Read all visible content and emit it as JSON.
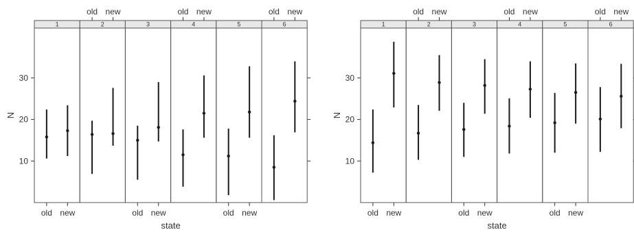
{
  "chart_data": [
    {
      "type": "errorbar",
      "xlabel": "state",
      "ylabel": "N",
      "categories": [
        "old",
        "new"
      ],
      "y_ticks": [
        10,
        20,
        30
      ],
      "ylim": [
        0,
        42
      ],
      "panels": [
        {
          "label": "1",
          "points": [
            {
              "x": "old",
              "y": 15.8,
              "low": 10.6,
              "high": 22.4
            },
            {
              "x": "new",
              "y": 17.3,
              "low": 11.2,
              "high": 23.4
            }
          ]
        },
        {
          "label": "2",
          "points": [
            {
              "x": "old",
              "y": 16.4,
              "low": 6.9,
              "high": 19.7
            },
            {
              "x": "new",
              "y": 16.6,
              "low": 13.7,
              "high": 27.6
            }
          ]
        },
        {
          "label": "3",
          "points": [
            {
              "x": "old",
              "y": 15.0,
              "low": 5.5,
              "high": 18.5
            },
            {
              "x": "new",
              "y": 18.1,
              "low": 14.7,
              "high": 29.0
            }
          ]
        },
        {
          "label": "4",
          "points": [
            {
              "x": "old",
              "y": 11.5,
              "low": 3.8,
              "high": 17.6
            },
            {
              "x": "new",
              "y": 21.5,
              "low": 15.6,
              "high": 30.6
            }
          ]
        },
        {
          "label": "5",
          "points": [
            {
              "x": "old",
              "y": 11.2,
              "low": 1.8,
              "high": 17.8
            },
            {
              "x": "new",
              "y": 21.8,
              "low": 15.6,
              "high": 32.8
            }
          ]
        },
        {
          "label": "6",
          "points": [
            {
              "x": "old",
              "y": 8.5,
              "low": 0.6,
              "high": 16.2
            },
            {
              "x": "new",
              "y": 24.4,
              "low": 16.9,
              "high": 34.0
            }
          ]
        }
      ]
    },
    {
      "type": "errorbar",
      "xlabel": "state",
      "ylabel": "N",
      "categories": [
        "old",
        "new"
      ],
      "y_ticks": [
        10,
        20,
        30
      ],
      "ylim": [
        0,
        42
      ],
      "panels": [
        {
          "label": "1",
          "points": [
            {
              "x": "old",
              "y": 14.4,
              "low": 7.2,
              "high": 22.4
            },
            {
              "x": "new",
              "y": 31.1,
              "low": 22.9,
              "high": 38.7
            }
          ]
        },
        {
          "label": "2",
          "points": [
            {
              "x": "old",
              "y": 16.7,
              "low": 10.3,
              "high": 23.5
            },
            {
              "x": "new",
              "y": 28.9,
              "low": 22.1,
              "high": 35.5
            }
          ]
        },
        {
          "label": "3",
          "points": [
            {
              "x": "old",
              "y": 17.6,
              "low": 11.0,
              "high": 24.0
            },
            {
              "x": "new",
              "y": 28.2,
              "low": 21.4,
              "high": 34.5
            }
          ]
        },
        {
          "label": "4",
          "points": [
            {
              "x": "old",
              "y": 18.4,
              "low": 11.8,
              "high": 25.1
            },
            {
              "x": "new",
              "y": 27.3,
              "low": 20.4,
              "high": 34.0
            }
          ]
        },
        {
          "label": "5",
          "points": [
            {
              "x": "old",
              "y": 19.2,
              "low": 12.0,
              "high": 26.4
            },
            {
              "x": "new",
              "y": 26.5,
              "low": 19.0,
              "high": 33.5
            }
          ]
        },
        {
          "label": "6",
          "points": [
            {
              "x": "old",
              "y": 20.1,
              "low": 12.2,
              "high": 27.8
            },
            {
              "x": "new",
              "y": 25.6,
              "low": 17.9,
              "high": 33.4
            }
          ]
        }
      ]
    }
  ]
}
